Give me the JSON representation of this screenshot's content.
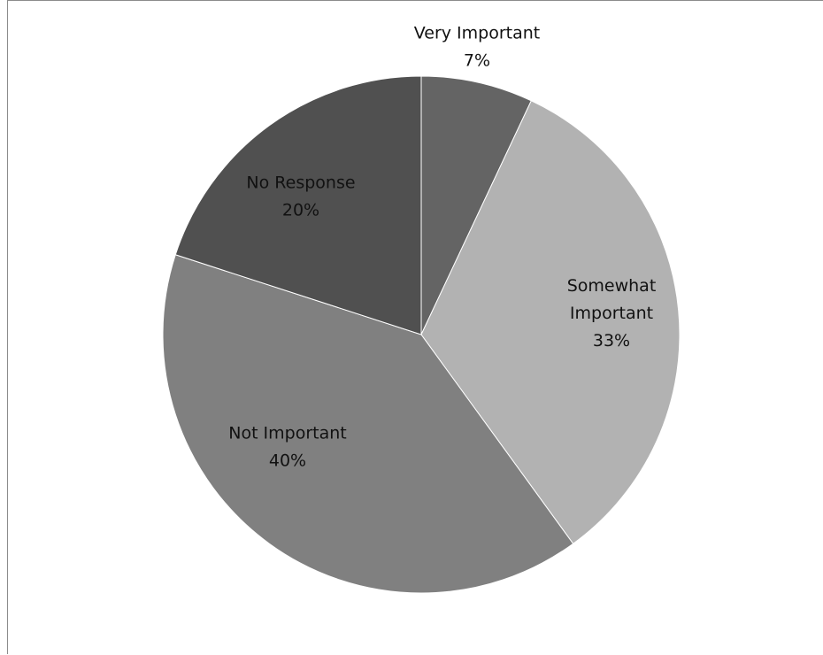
{
  "chart_data": {
    "type": "pie",
    "title": "",
    "slices": [
      {
        "label": "Very Important",
        "value": 7,
        "value_label": "7%",
        "color": "#646464",
        "label_lines": [
          "Very Important",
          "7%"
        ]
      },
      {
        "label": "Somewhat Important",
        "value": 33,
        "value_label": "33%",
        "color": "#b2b2b2",
        "label_lines": [
          "Somewhat",
          "Important",
          "33%"
        ]
      },
      {
        "label": "Not Important",
        "value": 40,
        "value_label": "40%",
        "color": "#808080",
        "label_lines": [
          "Not Important",
          "40%"
        ]
      },
      {
        "label": "No Response",
        "value": 20,
        "value_label": "20%",
        "color": "#505050",
        "label_lines": [
          "No Response",
          "20%"
        ]
      }
    ],
    "start_angle_deg": 0,
    "direction": "clockwise",
    "legend": "none",
    "data_labels": "category-and-percent"
  }
}
